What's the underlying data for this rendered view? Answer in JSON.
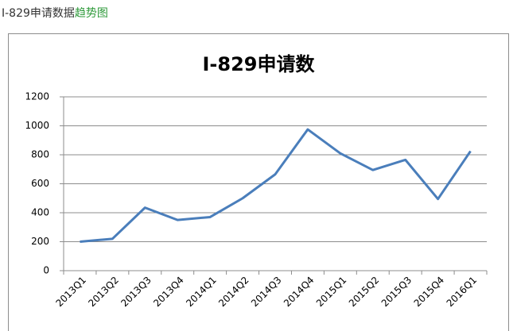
{
  "header": {
    "text": "I-829申请数据",
    "link": "趋势图"
  },
  "chart_data": {
    "type": "line",
    "title": "I-829申请数",
    "categories": [
      "2013Q1",
      "2013Q2",
      "2013Q3",
      "2013Q4",
      "2014Q1",
      "2014Q2",
      "2014Q3",
      "2014Q4",
      "2015Q1",
      "2015Q2",
      "2015Q3",
      "2015Q4",
      "2016Q1"
    ],
    "values": [
      200,
      220,
      435,
      350,
      370,
      500,
      665,
      975,
      810,
      695,
      765,
      495,
      825
    ],
    "color": "#4a7ebb",
    "ylim": [
      0,
      1200
    ],
    "yticks": [
      0,
      200,
      400,
      600,
      800,
      1000,
      1200
    ],
    "grid": true
  }
}
